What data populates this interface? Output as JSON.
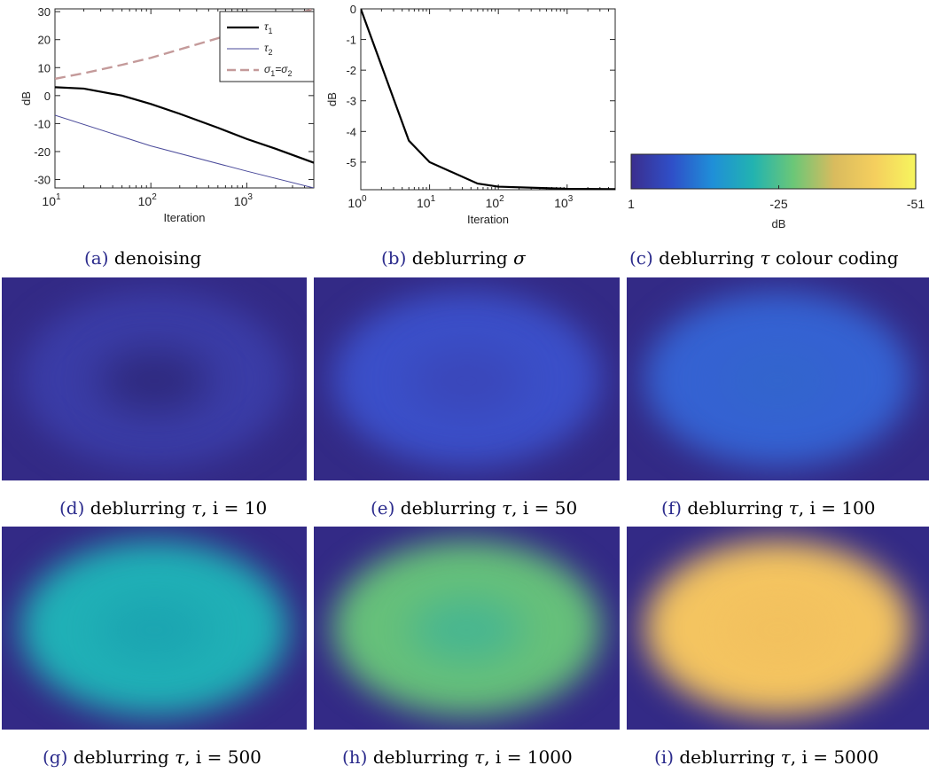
{
  "chart_data": [
    {
      "type": "line",
      "panel": "a",
      "xscale": "log",
      "xlim": [
        10,
        5000
      ],
      "ylim": [
        -33,
        31
      ],
      "xlabel": "Iteration",
      "ylabel": "dB",
      "xticks": [
        10,
        100,
        1000
      ],
      "xtick_labels": [
        "10",
        "10",
        "10"
      ],
      "xtick_exps": [
        "1",
        "2",
        "3"
      ],
      "yticks": [
        30,
        20,
        10,
        0,
        -10,
        -20,
        -30
      ],
      "ytick_labels": [
        "30",
        "20",
        "10",
        "0",
        "-10",
        "-20",
        "-30"
      ],
      "legend": "top-right",
      "series": [
        {
          "name": "τ",
          "sub": "1",
          "color": "#000000",
          "style": "solid",
          "x": [
            10,
            20,
            50,
            100,
            200,
            500,
            1000,
            2000,
            5000
          ],
          "y": [
            3,
            2.5,
            0,
            -3,
            -6.5,
            -11.5,
            -15.5,
            -19,
            -24
          ]
        },
        {
          "name": "τ",
          "sub": "2",
          "color": "#4a4a9a",
          "style": "solid",
          "x": [
            10,
            100,
            1000,
            5000
          ],
          "y": [
            -7,
            -18,
            -27,
            -33
          ]
        },
        {
          "name": "σ",
          "sub": "1",
          "name2": "=σ",
          "sub2": "2",
          "color": "#c49a9a",
          "style": "dashed",
          "x": [
            10,
            20,
            50,
            100,
            200,
            500,
            1000,
            2000,
            5000
          ],
          "y": [
            6,
            8,
            11,
            13.5,
            16.5,
            20.5,
            24,
            27,
            31
          ]
        }
      ]
    },
    {
      "type": "line",
      "panel": "b",
      "xscale": "log",
      "xlim": [
        1,
        5000
      ],
      "ylim": [
        -5.9,
        0
      ],
      "xlabel": "Iteration",
      "ylabel": "dB",
      "xticks": [
        1,
        10,
        100,
        1000
      ],
      "xtick_labels": [
        "10",
        "10",
        "10",
        "10"
      ],
      "xtick_exps": [
        "0",
        "1",
        "2",
        "3"
      ],
      "yticks": [
        0,
        -1,
        -2,
        -3,
        -4,
        -5
      ],
      "ytick_labels": [
        "0",
        "-1",
        "-2",
        "-3",
        "-4",
        "-5"
      ],
      "series": [
        {
          "color": "#000000",
          "x": [
            1,
            5,
            10,
            50,
            100,
            500,
            1000,
            5000
          ],
          "y": [
            0,
            -4.3,
            -5.0,
            -5.7,
            -5.8,
            -5.85,
            -5.87,
            -5.88
          ]
        }
      ]
    },
    {
      "type": "heatmap",
      "panel": "c",
      "colorbar_ticks": [
        "1",
        "-25",
        "-51"
      ],
      "colorbar_label": "dB",
      "colormap": [
        "#3b2e8e",
        "#2f4fc8",
        "#1f8fd8",
        "#22b3b0",
        "#6cc777",
        "#d9bb5e",
        "#f5cf5e",
        "#f6f55e"
      ]
    }
  ],
  "captions": [
    {
      "id": "a",
      "label": "(a)",
      "pre": " denoising",
      "math": "",
      "post": ""
    },
    {
      "id": "b",
      "label": "(b)",
      "pre": " deblurring ",
      "math": "σ",
      "post": ""
    },
    {
      "id": "c",
      "label": "(c)",
      "pre": " deblurring ",
      "math": "τ",
      "post": " colour coding"
    },
    {
      "id": "d",
      "label": "(d)",
      "pre": " deblurring ",
      "math": "τ",
      "post": ", i = 10"
    },
    {
      "id": "e",
      "label": "(e)",
      "pre": " deblurring ",
      "math": "τ",
      "post": ", i = 50"
    },
    {
      "id": "f",
      "label": "(f)",
      "pre": " deblurring ",
      "math": "τ",
      "post": ", i = 100"
    },
    {
      "id": "g",
      "label": "(g)",
      "pre": " deblurring ",
      "math": "τ",
      "post": ", i = 500"
    },
    {
      "id": "h",
      "label": "(h)",
      "pre": " deblurring ",
      "math": "τ",
      "post": ", i = 1000"
    },
    {
      "id": "i",
      "label": "(i)",
      "pre": " deblurring ",
      "math": "τ",
      "post": ", i = 5000"
    }
  ],
  "heatmaps": [
    {
      "id": "d",
      "bg": "#332a86",
      "mid": "#3a3ca6",
      "center": "#2c2574"
    },
    {
      "id": "e",
      "bg": "#332a86",
      "mid": "#3b4fc8",
      "center": "#3a45b6"
    },
    {
      "id": "f",
      "bg": "#332a86",
      "mid": "#3562d2",
      "center": "#3266cc"
    },
    {
      "id": "g",
      "bg": "#332a86",
      "mid": "#20b0b6",
      "center": "#1aa2b0"
    },
    {
      "id": "h",
      "bg": "#332a86",
      "mid": "#66c07a",
      "center": "#3fb397"
    },
    {
      "id": "i",
      "bg": "#332a86",
      "mid": "#f4c460",
      "center": "#f2c05e"
    }
  ]
}
